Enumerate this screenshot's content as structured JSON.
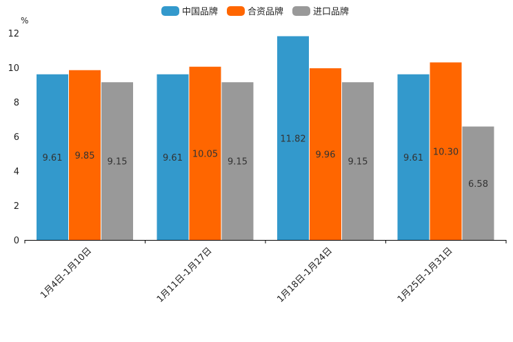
{
  "chart_data": {
    "type": "bar",
    "ylabel": "%",
    "ylim": [
      0,
      12
    ],
    "yticks": [
      0,
      2,
      4,
      6,
      8,
      10,
      12
    ],
    "categories": [
      "1月4日-1月10日",
      "1月11日-1月17日",
      "1月18日-1月24日",
      "1月25日-1月31日"
    ],
    "series": [
      {
        "name": "中国品牌",
        "color": "#3399cc",
        "values": [
          9.61,
          9.61,
          11.82,
          9.61
        ],
        "labels": [
          "9.61",
          "9.61",
          "11.82",
          "9.61"
        ]
      },
      {
        "name": "合资品牌",
        "color": "#ff6600",
        "values": [
          9.85,
          10.05,
          9.96,
          10.3
        ],
        "labels": [
          "9.85",
          "10.05",
          "9.96",
          "10.30"
        ]
      },
      {
        "name": "进口品牌",
        "color": "#999999",
        "values": [
          9.15,
          9.15,
          9.15,
          6.58
        ],
        "labels": [
          "9.15",
          "9.15",
          "9.15",
          "6.58"
        ]
      }
    ],
    "legend_position": "top-center",
    "grid": false
  }
}
